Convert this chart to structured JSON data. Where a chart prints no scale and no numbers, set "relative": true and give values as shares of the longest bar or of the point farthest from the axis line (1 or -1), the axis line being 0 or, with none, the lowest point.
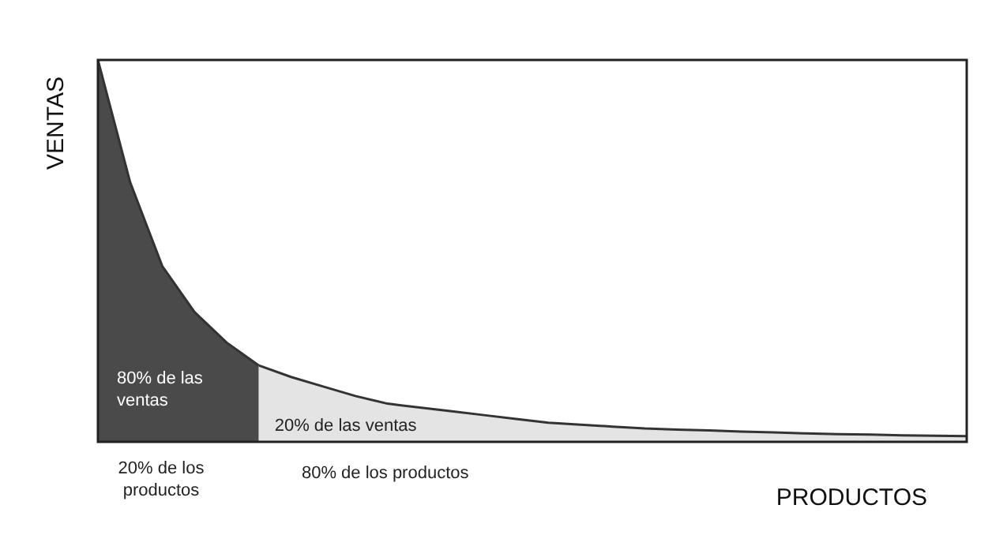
{
  "chart_data": {
    "type": "area",
    "relative": true,
    "xlabel": "PRODUCTOS",
    "ylabel": "VENTAS",
    "categories": [
      null,
      null,
      null,
      null,
      null,
      null,
      null,
      null,
      null,
      null,
      null,
      null,
      null,
      null,
      null,
      null,
      null,
      null,
      null,
      null,
      null,
      null,
      null,
      null,
      null,
      null,
      null,
      null
    ],
    "series": [
      {
        "color": "#4a4a4a",
        "values": [
          1.0,
          0.68,
          0.46,
          0.34,
          0.26,
          0.2,
          null,
          null,
          null,
          null,
          null,
          null,
          null,
          null,
          null,
          null,
          null,
          null,
          null,
          null,
          null,
          null,
          null,
          null,
          null,
          null,
          null,
          null
        ]
      },
      {
        "color": "#e4e4e4",
        "values": [
          null,
          null,
          null,
          null,
          null,
          0.2,
          0.17,
          0.145,
          0.12,
          0.1,
          0.09,
          0.08,
          0.07,
          0.06,
          0.05,
          0.045,
          0.04,
          0.035,
          0.032,
          0.03,
          0.027,
          0.025,
          0.022,
          0.02,
          0.019,
          0.017,
          0.016,
          0.015
        ]
      }
    ],
    "annotations": [
      "80% de las ventas",
      "20% de las ventas",
      "20% de los productos",
      "80% de los productos"
    ]
  }
}
